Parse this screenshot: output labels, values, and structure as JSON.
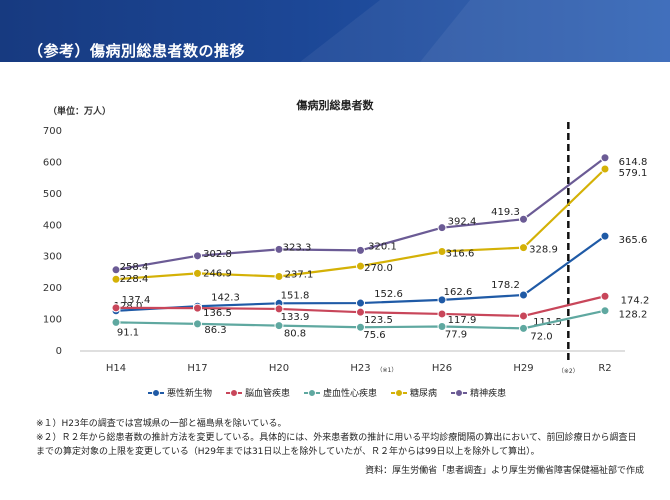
{
  "header": {
    "title": "（参考）傷病別総患者数の推移"
  },
  "unit_label": "（単位：万人）",
  "chart_data": {
    "type": "line",
    "title": "傷病別総患者数",
    "categories": [
      "H14",
      "H17",
      "H20",
      "H23",
      "H26",
      "H29",
      "R2"
    ],
    "category_note": {
      "category": "H23",
      "note": "（※1）"
    },
    "break_note": "（※2）",
    "ylim": [
      0,
      700
    ],
    "yticks": [
      0,
      100,
      200,
      300,
      400,
      500,
      600,
      700
    ],
    "grid": false,
    "legend_position": "bottom",
    "series": [
      {
        "name": "悪性新生物",
        "color": "#1f5aa6",
        "values": [
          128.0,
          142.3,
          151.8,
          152.6,
          162.6,
          178.2,
          365.6
        ],
        "labels": [
          "128.0",
          "142.3",
          "151.8",
          "152.6",
          "162.6",
          "178.2",
          "365.6"
        ]
      },
      {
        "name": "脳血管疾患",
        "color": "#c8465a",
        "values": [
          137.4,
          136.5,
          133.9,
          123.5,
          117.9,
          111.5,
          174.2
        ],
        "labels": [
          "137.4",
          "136.5",
          "133.9",
          "123.5",
          "117.9",
          "111.5",
          "174.2"
        ]
      },
      {
        "name": "虚血性心疾患",
        "color": "#5fa8a0",
        "values": [
          91.1,
          86.3,
          80.8,
          75.6,
          77.9,
          72.0,
          128.2
        ],
        "labels": [
          "91.1",
          "86.3",
          "80.8",
          "75.6",
          "77.9",
          "72.0",
          "128.2"
        ]
      },
      {
        "name": "糖尿病",
        "color": "#d4b106",
        "values": [
          228.4,
          246.9,
          237.1,
          270.0,
          316.6,
          328.9,
          579.1
        ],
        "labels": [
          "228.4",
          "246.9",
          "237.1",
          "270.0",
          "316.6",
          "328.9",
          "579.1"
        ]
      },
      {
        "name": "精神疾患",
        "color": "#6b5b95",
        "values": [
          258.4,
          302.8,
          323.3,
          320.1,
          392.4,
          419.3,
          614.8
        ],
        "labels": [
          "258.4",
          "302.8",
          "323.3",
          "320.1",
          "392.4",
          "419.3",
          "614.8"
        ]
      }
    ]
  },
  "notes": [
    "※１）H23年の調査では宮城県の一部と福島県を除いている。",
    "※２）Ｒ２年から総患者数の推計方法を変更している。具体的には、外来患者数の推計に用いる平均診療間隔の算出において、前回診療日から調査日",
    "までの算定対象の上限を変更している（H29年までは31日以上を除外していたが、Ｒ２年からは99日以上を除外して算出）。"
  ],
  "source": "資料：厚生労働省「患者調査」より厚生労働省障害保健福祉部で作成"
}
